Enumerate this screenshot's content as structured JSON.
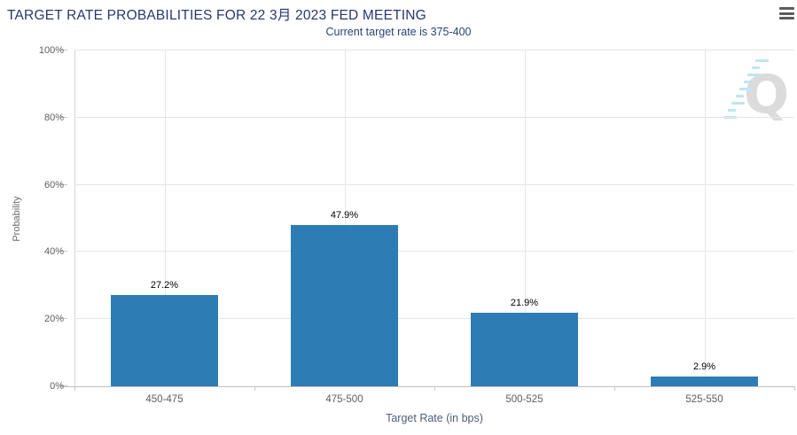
{
  "header": {
    "title": "TARGET RATE PROBABILITIES FOR 22 3月 2023 FED MEETING",
    "subtitle": "Current target rate is 375-400",
    "menu_icon": "hamburger-menu"
  },
  "watermark": {
    "letter": "Q",
    "description": "quandl-logo-watermark"
  },
  "colors": {
    "bar": "#2d7db4",
    "title_text": "#26386e",
    "subtitle_text": "#26457a",
    "gridline": "#e6e6e6",
    "axis_line": "#c0c0c0",
    "tick_label": "#5e5e5e",
    "data_label": "#000000",
    "axis_title": "#4c5f7a",
    "watermark_q": "#dbdbdb",
    "watermark_dash": "#bfe4f6"
  },
  "chart_data": {
    "type": "bar",
    "title": "TARGET RATE PROBABILITIES FOR 22 3月 2023 FED MEETING",
    "subtitle": "Current target rate is 375-400",
    "categories": [
      "450-475",
      "475-500",
      "500-525",
      "525-550"
    ],
    "values": [
      27.2,
      47.9,
      21.9,
      2.9
    ],
    "data_labels": [
      "27.2%",
      "47.9%",
      "21.9%",
      "2.9%"
    ],
    "xlabel": "Target Rate (in bps)",
    "ylabel": "Probability",
    "ylim": [
      0,
      100
    ],
    "yticks": [
      {
        "value": 0,
        "label": "0%"
      },
      {
        "value": 20,
        "label": "20%"
      },
      {
        "value": 40,
        "label": "40%"
      },
      {
        "value": 60,
        "label": "60%"
      },
      {
        "value": 80,
        "label": "80%"
      },
      {
        "value": 100,
        "label": "100%"
      }
    ],
    "grid": "horizontal lines at y ticks, vertical lines at category centers",
    "legend": "none",
    "bar_color": "#2d7db4"
  }
}
